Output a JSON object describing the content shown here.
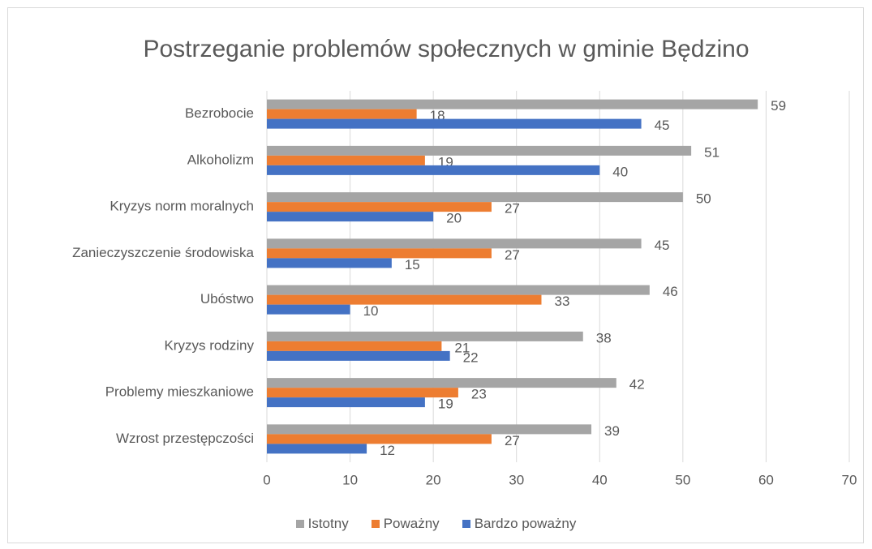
{
  "chart_data": {
    "type": "hbar",
    "title": "Postrzeganie problemów społecznych w gminie Będzino",
    "categories": [
      "Bezrobocie",
      "Alkoholizm",
      "Kryzys norm moralnych",
      "Zanieczyszczenie środowiska",
      "Ubóstwo",
      "Kryzys rodziny",
      "Problemy mieszkaniowe",
      "Wzrost przestępczości"
    ],
    "series": [
      {
        "name": "Istotny",
        "color": "#a5a5a5",
        "values": [
          59,
          51,
          50,
          45,
          46,
          38,
          42,
          39
        ]
      },
      {
        "name": "Poważny",
        "color": "#ed7d31",
        "values": [
          18,
          19,
          27,
          27,
          33,
          21,
          23,
          27
        ]
      },
      {
        "name": "Bardzo poważny",
        "color": "#4472c4",
        "values": [
          45,
          40,
          20,
          15,
          10,
          22,
          19,
          12
        ]
      }
    ],
    "xlim": [
      0,
      70
    ],
    "xticks": [
      0,
      10,
      20,
      30,
      40,
      50,
      60,
      70
    ],
    "grid": true,
    "legend": "bottom",
    "data_labels": true
  }
}
